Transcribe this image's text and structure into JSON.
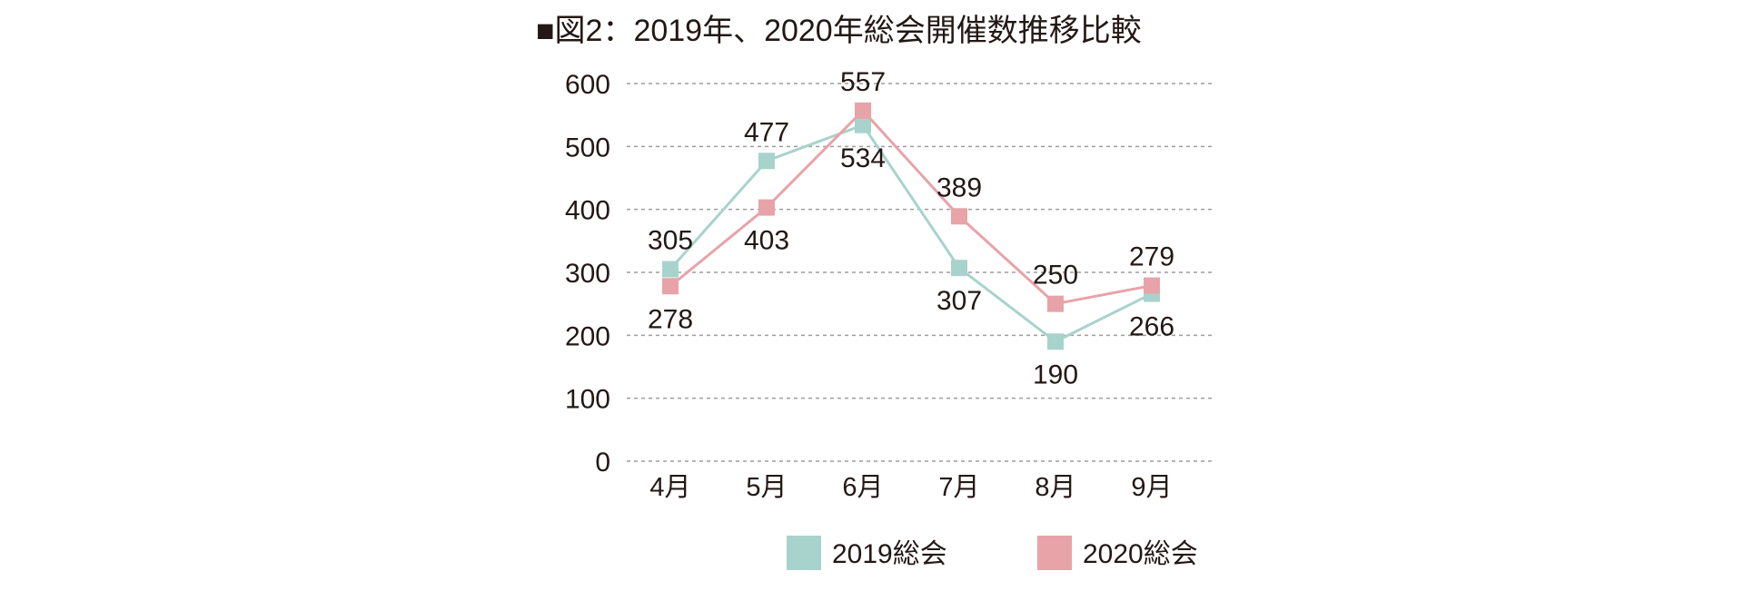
{
  "chart_data": {
    "type": "line",
    "title": "■図2：2019年、2020年総会開催数推移比較",
    "categories": [
      "4月",
      "5月",
      "6月",
      "7月",
      "8月",
      "9月"
    ],
    "series": [
      {
        "name": "2019総会",
        "color": "#a8d3cc",
        "values": [
          305,
          477,
          534,
          307,
          190,
          266
        ]
      },
      {
        "name": "2020総会",
        "color": "#e8a3a8",
        "values": [
          278,
          403,
          557,
          389,
          250,
          279
        ]
      }
    ],
    "y_ticks": [
      0,
      100,
      200,
      300,
      400,
      500,
      600
    ],
    "ylim": [
      0,
      600
    ],
    "xlabel": "",
    "ylabel": "",
    "grid": true,
    "legend": "bottom"
  }
}
